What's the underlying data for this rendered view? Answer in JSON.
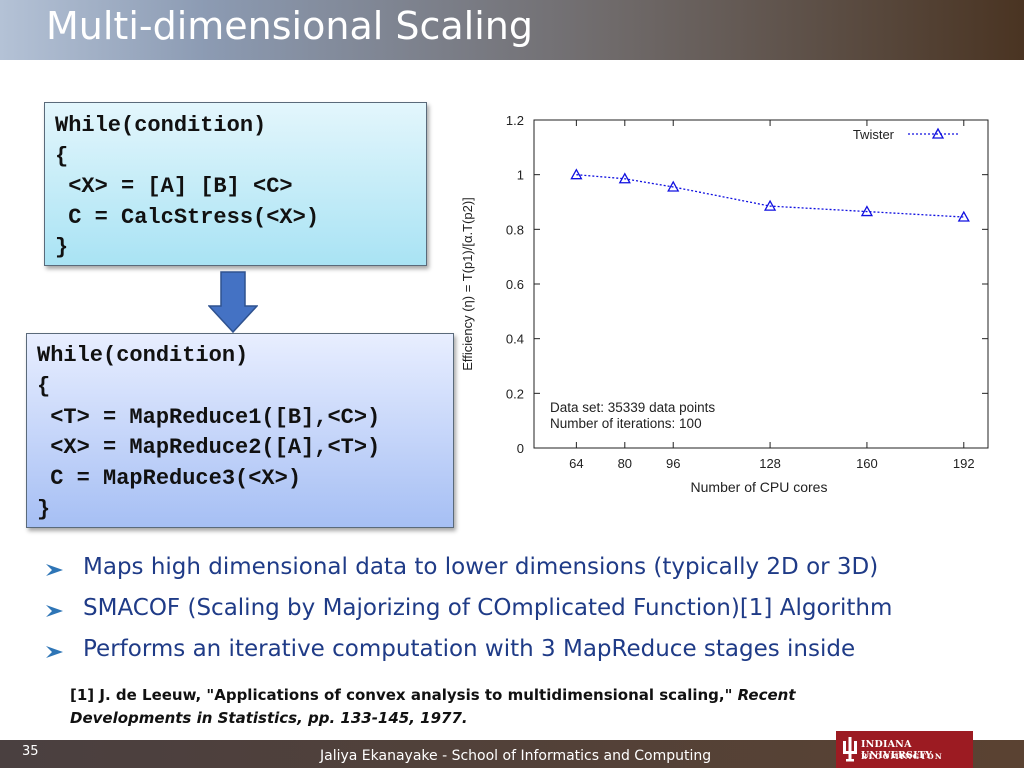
{
  "slide": {
    "title": "Multi-dimensional Scaling",
    "slide_number": "35",
    "footer": "Jaliya Ekanayake - School of Informatics and Computing",
    "logo": {
      "line1": "INDIANA UNIVERSITY",
      "line2": "BLOOMINGTON"
    }
  },
  "code_box_1": [
    "While(condition)",
    "{",
    " <X> = [A] [B] <C>",
    " C = CalcStress(<X>)",
    "}"
  ],
  "code_box_2": [
    "While(condition)",
    "{",
    " <T> = MapReduce1([B],<C>)",
    " <X> = MapReduce2([A],<T>)",
    " C = MapReduce3(<X>)",
    "}"
  ],
  "bullets": [
    "Maps high dimensional data to lower dimensions (typically 2D or 3D)",
    "SMACOF (Scaling by Majorizing of COmplicated Function)[1] Algorithm",
    "Performs an iterative computation with 3 MapReduce stages inside"
  ],
  "reference": {
    "text": "[1] J. de Leeuw, \"Applications of convex analysis to multidimensional scaling,\" ",
    "italic": "Recent Developments in Statistics, pp. 133-145, 1977."
  },
  "colors": {
    "bullet_text": "#1f3b87",
    "series": "#1010e0",
    "arrow": "#4472c4",
    "logo_bg": "#9c1b22"
  },
  "chart_data": {
    "type": "line",
    "xlabel": "Number of CPU cores",
    "ylabel": "Efficiency (η) = T(p1)/[α.T(p2)]",
    "x_ticks": [
      64,
      80,
      96,
      128,
      160,
      192
    ],
    "y_ticks": [
      "0",
      "0.2",
      "0.4",
      "0.6",
      "0.8",
      "1",
      "1.2"
    ],
    "xlim": [
      50,
      200
    ],
    "ylim": [
      0,
      1.2
    ],
    "grid": false,
    "legend_position": "top-right",
    "series": [
      {
        "name": "Twister",
        "marker": "triangle",
        "x": [
          64,
          80,
          96,
          128,
          160,
          192
        ],
        "y": [
          1.0,
          0.985,
          0.955,
          0.885,
          0.865,
          0.845
        ]
      }
    ],
    "annotations": [
      "Data set: 35339 data points",
      "Number of iterations: 100"
    ]
  }
}
